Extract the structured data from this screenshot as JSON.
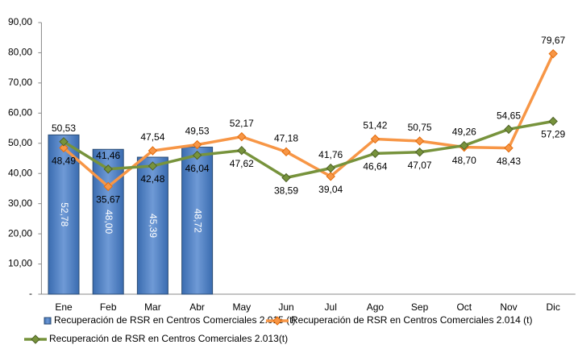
{
  "chart_data": {
    "type": "combo",
    "categories": [
      "Ene",
      "Feb",
      "Mar",
      "Abr",
      "May",
      "Jun",
      "Jul",
      "Ago",
      "Sep",
      "Oct",
      "Nov",
      "Dic"
    ],
    "series": [
      {
        "name": "Recuperación de RSR en Centros Comerciales 2.015 (t)",
        "type": "bar",
        "color": "#4f81bd",
        "values": [
          52.78,
          48.0,
          45.39,
          48.72,
          null,
          null,
          null,
          null,
          null,
          null,
          null,
          null
        ],
        "value_labels": [
          "52,78",
          "48,00",
          "45,39",
          "48,72",
          null,
          null,
          null,
          null,
          null,
          null,
          null,
          null
        ]
      },
      {
        "name": "Recuperación de RSR en Centros Comerciales 2.014 (t)",
        "type": "line",
        "color": "#f79646",
        "values": [
          48.49,
          35.67,
          47.54,
          49.53,
          52.17,
          47.18,
          39.04,
          51.42,
          50.75,
          48.7,
          48.43,
          79.67
        ],
        "value_labels": [
          "48,49",
          "35,67",
          "47,54",
          "49,53",
          "52,17",
          "47,18",
          "39,04",
          "51,42",
          "50,75",
          "48,70",
          "48,43",
          "79,67"
        ]
      },
      {
        "name": "Recuperación de RSR en Centros Comerciales 2.013(t)",
        "type": "line",
        "color": "#77933c",
        "values": [
          50.53,
          41.46,
          42.48,
          46.04,
          47.62,
          38.59,
          41.76,
          46.64,
          47.07,
          49.26,
          54.65,
          57.29
        ],
        "value_labels": [
          "50,53",
          "41,46",
          "42,48",
          "46,04",
          "47,62",
          "38,59",
          "41,76",
          "46,64",
          "47,07",
          "49,26",
          "54,65",
          "57,29"
        ]
      }
    ],
    "ylim": [
      0,
      90
    ],
    "yticks": [
      {
        "value": 0,
        "label": "-"
      },
      {
        "value": 10,
        "label": "10,00"
      },
      {
        "value": 20,
        "label": "20,00"
      },
      {
        "value": 30,
        "label": "30,00"
      },
      {
        "value": 40,
        "label": "40,00"
      },
      {
        "value": 50,
        "label": "50,00"
      },
      {
        "value": 60,
        "label": "60,00"
      },
      {
        "value": 70,
        "label": "70,00"
      },
      {
        "value": 80,
        "label": "80,00"
      },
      {
        "value": 90,
        "label": "90,00"
      }
    ],
    "legend": "bottom"
  }
}
